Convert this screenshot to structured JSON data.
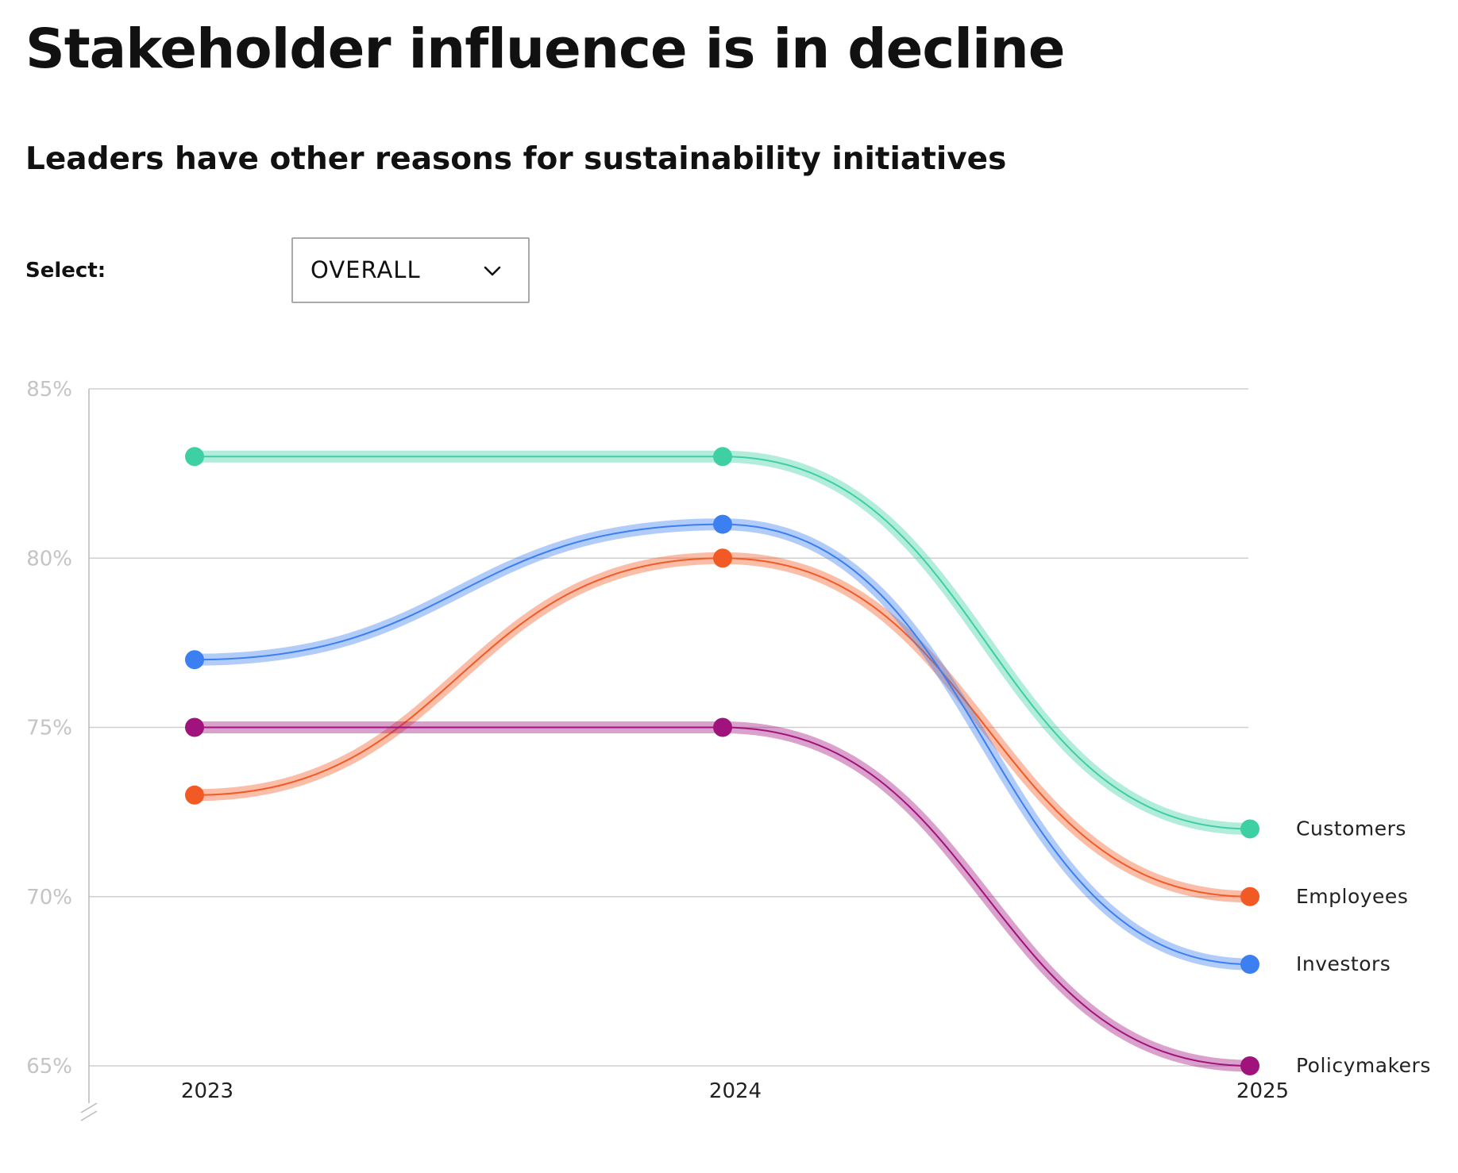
{
  "header": {
    "title": "Stakeholder influence is in decline",
    "subtitle": "Leaders have other reasons for sustainability initiatives"
  },
  "controls": {
    "select_label": "Select:",
    "dropdown_value": "OVERALL",
    "dropdown_icon": "chevron-down-icon"
  },
  "chart_data": {
    "type": "line",
    "title": "Stakeholder influence is in decline",
    "subtitle": "Leaders have other reasons for sustainability initiatives",
    "x": [
      "2023",
      "2024",
      "2025"
    ],
    "ylim": [
      65,
      85
    ],
    "yticks": [
      65,
      70,
      75,
      80,
      85
    ],
    "ytick_labels": [
      "65%",
      "70%",
      "75%",
      "80%",
      "85%"
    ],
    "xlabel": "",
    "ylabel": "",
    "grid": true,
    "legend": "right-end-labels",
    "series": [
      {
        "name": "Customers",
        "values": [
          83,
          83,
          72
        ],
        "color": "#3ecfa3"
      },
      {
        "name": "Employees",
        "values": [
          73,
          80,
          70
        ],
        "color": "#f25a25"
      },
      {
        "name": "Investors",
        "values": [
          77,
          81,
          68
        ],
        "color": "#3b7ff0"
      },
      {
        "name": "Policymakers",
        "values": [
          75,
          75,
          65
        ],
        "color": "#a0137d"
      }
    ]
  }
}
